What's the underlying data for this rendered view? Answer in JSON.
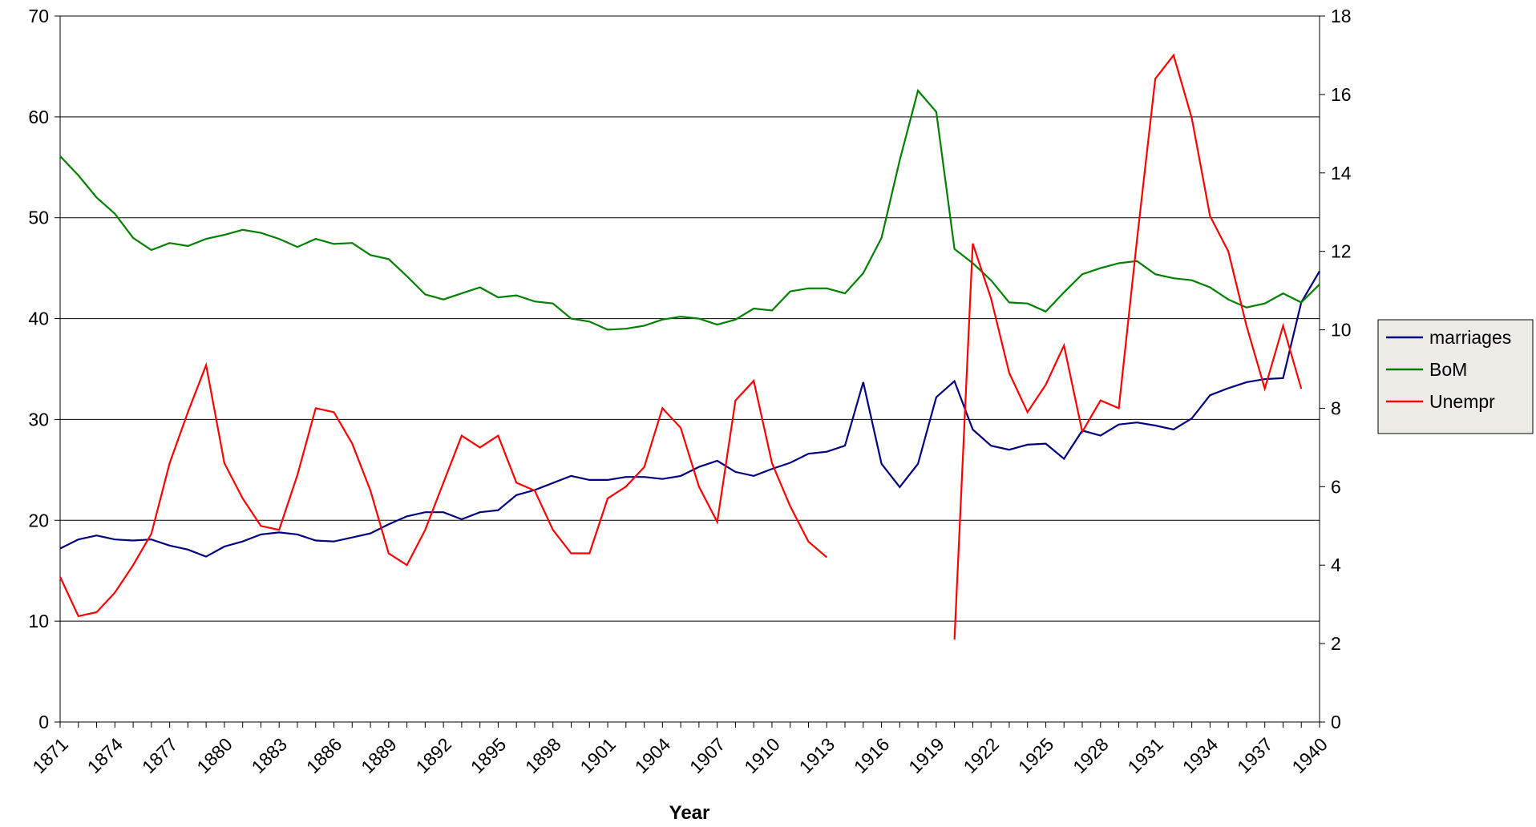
{
  "chart_data": {
    "type": "line",
    "x_label": "Year",
    "categories": [
      "1871",
      null,
      null,
      "1874",
      null,
      null,
      "1877",
      null,
      null,
      "1880",
      null,
      null,
      "1883",
      null,
      null,
      "1886",
      null,
      null,
      "1889",
      null,
      null,
      "1892",
      null,
      null,
      "1895",
      null,
      null,
      "1898",
      null,
      null,
      "1901",
      null,
      null,
      "1904",
      null,
      null,
      "1907",
      null,
      null,
      "1910",
      null,
      null,
      "1913",
      null,
      null,
      "1916",
      null,
      null,
      "1919",
      null,
      null,
      "1922",
      null,
      null,
      "1925",
      null,
      null,
      "1928",
      null,
      null,
      "1931",
      null,
      null,
      "1934",
      null,
      null,
      "1937",
      null,
      null,
      "1940"
    ],
    "series": [
      {
        "name": "marriages",
        "color": "#000080",
        "values": [
          17.2,
          18.1,
          18.5,
          18.1,
          18.0,
          18.1,
          17.5,
          17.1,
          16.4,
          17.4,
          17.9,
          18.6,
          18.8,
          18.6,
          18.0,
          17.9,
          18.3,
          18.7,
          19.6,
          20.4,
          20.8,
          20.8,
          20.1,
          20.8,
          21.0,
          22.5,
          23.0,
          23.7,
          24.4,
          24.0,
          24.0,
          24.3,
          24.3,
          24.1,
          24.4,
          25.3,
          25.9,
          24.8,
          24.4,
          25.1,
          25.7,
          26.6,
          26.8,
          27.4,
          33.7,
          25.6,
          23.3,
          25.6,
          32.2,
          33.8,
          29.0,
          27.4,
          27.0,
          27.5,
          27.6,
          26.1,
          28.9,
          28.4,
          29.5,
          29.7,
          29.4,
          29.0,
          30.1,
          32.4,
          33.1,
          33.7,
          34.0,
          34.1,
          41.6,
          44.7
        ]
      },
      {
        "name": "BoM",
        "color": "#008000",
        "values": [
          56.1,
          54.2,
          52.0,
          50.4,
          48.0,
          46.8,
          47.5,
          47.2,
          47.9,
          48.3,
          48.8,
          48.5,
          47.9,
          47.1,
          47.9,
          47.4,
          47.5,
          46.3,
          45.9,
          44.2,
          42.4,
          41.9,
          42.5,
          43.1,
          42.1,
          42.3,
          41.7,
          41.5,
          40.0,
          39.7,
          38.9,
          39.0,
          39.3,
          39.9,
          40.2,
          40.0,
          39.4,
          39.9,
          41.0,
          40.8,
          42.7,
          43.0,
          43.0,
          42.5,
          44.5,
          48.0,
          55.7,
          62.6,
          60.5,
          46.9,
          45.5,
          43.8,
          41.6,
          41.5,
          40.7,
          42.6,
          44.4,
          45.0,
          45.5,
          45.7,
          44.4,
          44.0,
          43.8,
          43.1,
          41.9,
          41.1,
          41.5,
          42.5,
          41.6,
          43.4
        ]
      },
      {
        "name": "Unempr",
        "color": "#ff0000",
        "axis": "y2",
        "values": [
          3.7,
          2.7,
          2.8,
          3.3,
          4.0,
          4.8,
          6.6,
          7.9,
          9.1,
          6.6,
          5.7,
          5.0,
          4.9,
          6.3,
          8.0,
          7.9,
          7.1,
          5.9,
          4.3,
          4.0,
          4.9,
          6.1,
          7.3,
          7.0,
          7.3,
          6.1,
          5.9,
          4.9,
          4.3,
          4.3,
          5.7,
          6.0,
          6.5,
          8.0,
          7.5,
          6.0,
          5.1,
          8.2,
          8.7,
          6.6,
          5.5,
          4.6,
          4.2,
          null,
          null,
          null,
          null,
          null,
          null,
          2.1,
          12.2,
          10.8,
          8.9,
          7.9,
          8.6,
          9.6,
          7.4,
          8.2,
          8.0,
          12.3,
          16.4,
          17.0,
          15.4,
          12.9,
          12.0,
          10.1,
          8.5,
          10.1,
          8.5,
          null
        ]
      }
    ],
    "ylim": [
      0,
      70
    ],
    "yticks": [
      0,
      10,
      20,
      30,
      40,
      50,
      60,
      70
    ],
    "y2lim": [
      0,
      18
    ],
    "y2ticks": [
      0,
      2,
      4,
      6,
      8,
      10,
      12,
      14,
      16,
      18
    ],
    "grid": true,
    "legend": "right"
  }
}
